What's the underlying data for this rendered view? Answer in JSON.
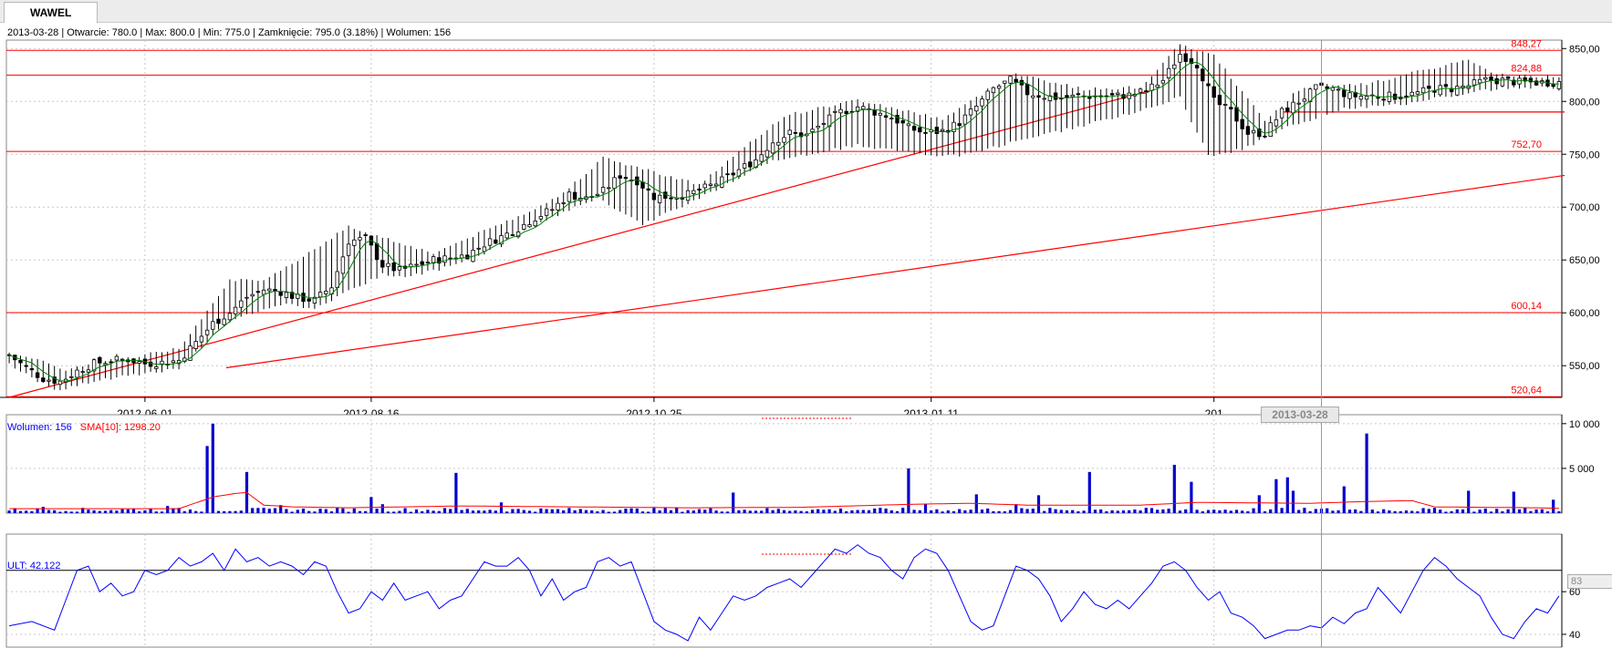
{
  "tab": {
    "label": "WAWEL"
  },
  "info": {
    "text": "2013-03-28 | Otwarcie: 780.0 | Max: 800.0 | Min: 775.0 | Zamknięcie: 795.0 (3.18%) | Wolumen: 156"
  },
  "volume_legend": {
    "vol_label": "Wolumen: 156",
    "sma_label": "SMA[10]: 1298.20"
  },
  "ult_legend": {
    "label": "ULT: 42.122"
  },
  "crosshair": {
    "date_label": "2013-03-28",
    "ult_value_label": "83"
  },
  "colors": {
    "support": "#ff0000",
    "sma_price": "#008000",
    "volume": "#0000cc",
    "sma_volume": "#ff0000",
    "ult": "#0000ff",
    "grid": "#c8c8c8"
  },
  "chart_data": [
    {
      "type": "candlestick",
      "title": "WAWEL",
      "ylim": [
        520,
        858
      ],
      "price_ticks": [
        "850,00",
        "800,00",
        "750,00",
        "700,00",
        "650,00",
        "600,00",
        "550,00"
      ],
      "date_labels": [
        "2012-06-01",
        "2012-08-16",
        "2012-10-25",
        "2013-01-11",
        "201"
      ],
      "horizontal_levels": [
        {
          "value": 848.27,
          "label": "848,27"
        },
        {
          "value": 824.88,
          "label": "824,88"
        },
        {
          "value": 752.7,
          "label": "752,70"
        },
        {
          "value": 600.14,
          "label": "600,14"
        },
        {
          "value": 520.64,
          "label": "520,64"
        }
      ],
      "trend_lines": [
        {
          "from": [
            "2012-05-01",
            520
          ],
          "to": [
            "2013-03-07",
            810
          ]
        },
        {
          "from": [
            "2012-06-29",
            548
          ],
          "to": [
            "2013-06-28",
            730
          ]
        },
        {
          "from": [
            "2013-04-12",
            790
          ],
          "to": [
            "2013-06-28",
            790
          ]
        }
      ],
      "closes": [
        [
          0,
          560
        ],
        [
          3,
          548
        ],
        [
          6,
          538
        ],
        [
          9,
          535
        ],
        [
          12,
          545
        ],
        [
          15,
          552
        ],
        [
          18,
          555
        ],
        [
          21,
          556
        ],
        [
          24,
          552
        ],
        [
          27,
          553
        ],
        [
          30,
          555
        ],
        [
          33,
          572
        ],
        [
          36,
          590
        ],
        [
          39,
          600
        ],
        [
          42,
          615
        ],
        [
          45,
          622
        ],
        [
          48,
          620
        ],
        [
          51,
          614
        ],
        [
          54,
          612
        ],
        [
          57,
          625
        ],
        [
          60,
          668
        ],
        [
          63,
          670
        ],
        [
          66,
          645
        ],
        [
          69,
          640
        ],
        [
          72,
          645
        ],
        [
          75,
          650
        ],
        [
          78,
          652
        ],
        [
          81,
          655
        ],
        [
          84,
          665
        ],
        [
          87,
          672
        ],
        [
          90,
          680
        ],
        [
          93,
          690
        ],
        [
          96,
          698
        ],
        [
          99,
          712
        ],
        [
          102,
          708
        ],
        [
          105,
          715
        ],
        [
          108,
          730
        ],
        [
          111,
          725
        ],
        [
          114,
          710
        ],
        [
          117,
          710
        ],
        [
          120,
          712
        ],
        [
          123,
          718
        ],
        [
          126,
          725
        ],
        [
          129,
          735
        ],
        [
          132,
          745
        ],
        [
          135,
          762
        ],
        [
          138,
          770
        ],
        [
          141,
          768
        ],
        [
          144,
          780
        ],
        [
          147,
          790
        ],
        [
          150,
          795
        ],
        [
          153,
          790
        ],
        [
          156,
          785
        ],
        [
          159,
          775
        ],
        [
          162,
          770
        ],
        [
          165,
          772
        ],
        [
          168,
          780
        ],
        [
          171,
          795
        ],
        [
          174,
          812
        ],
        [
          177,
          820
        ],
        [
          180,
          808
        ],
        [
          183,
          805
        ],
        [
          186,
          803
        ],
        [
          189,
          805
        ],
        [
          192,
          805
        ],
        [
          195,
          805
        ],
        [
          198,
          806
        ],
        [
          201,
          810
        ],
        [
          204,
          820
        ],
        [
          207,
          845
        ],
        [
          210,
          835
        ],
        [
          213,
          800
        ],
        [
          216,
          790
        ],
        [
          219,
          770
        ],
        [
          222,
          770
        ],
        [
          225,
          790
        ],
        [
          228,
          800
        ],
        [
          231,
          812
        ],
        [
          234,
          812
        ],
        [
          237,
          805
        ],
        [
          240,
          805
        ],
        [
          243,
          805
        ],
        [
          246,
          805
        ],
        [
          249,
          808
        ],
        [
          252,
          812
        ],
        [
          255,
          812
        ],
        [
          258,
          815
        ],
        [
          261,
          820
        ],
        [
          264,
          820
        ],
        [
          267,
          818
        ],
        [
          269,
          818
        ]
      ],
      "lows": [
        [
          0,
          553
        ],
        [
          8,
          528
        ],
        [
          20,
          542
        ],
        [
          30,
          548
        ],
        [
          39,
          595
        ],
        [
          48,
          610
        ],
        [
          54,
          605
        ],
        [
          66,
          638
        ],
        [
          70,
          635
        ],
        [
          80,
          648
        ],
        [
          93,
          685
        ],
        [
          104,
          710
        ],
        [
          112,
          685
        ],
        [
          119,
          702
        ],
        [
          135,
          745
        ],
        [
          150,
          760
        ],
        [
          160,
          752
        ],
        [
          168,
          750
        ],
        [
          183,
          770
        ],
        [
          195,
          785
        ],
        [
          207,
          805
        ],
        [
          212,
          750
        ],
        [
          218,
          756
        ],
        [
          225,
          775
        ],
        [
          236,
          795
        ],
        [
          246,
          798
        ],
        [
          260,
          812
        ],
        [
          269,
          815
        ]
      ],
      "highs": [
        [
          0,
          562
        ],
        [
          10,
          545
        ],
        [
          23,
          558
        ],
        [
          30,
          565
        ],
        [
          39,
          630
        ],
        [
          45,
          628
        ],
        [
          60,
          680
        ],
        [
          75,
          655
        ],
        [
          90,
          690
        ],
        [
          97,
          708
        ],
        [
          105,
          745
        ],
        [
          112,
          735
        ],
        [
          122,
          720
        ],
        [
          137,
          785
        ],
        [
          150,
          800
        ],
        [
          165,
          782
        ],
        [
          178,
          825
        ],
        [
          190,
          810
        ],
        [
          200,
          812
        ],
        [
          207,
          852
        ],
        [
          213,
          842
        ],
        [
          222,
          780
        ],
        [
          228,
          810
        ],
        [
          240,
          815
        ],
        [
          258,
          838
        ],
        [
          262,
          825
        ],
        [
          269,
          822
        ]
      ]
    },
    {
      "type": "bar",
      "series": [
        {
          "name": "Wolumen"
        },
        {
          "name": "SMA[10]"
        }
      ],
      "ylim": [
        0,
        11000
      ],
      "ticks": [
        "10 000",
        "5 000"
      ],
      "spikes": [
        [
          6,
          700
        ],
        [
          28,
          800
        ],
        [
          35,
          7500
        ],
        [
          36,
          10000
        ],
        [
          42,
          4600
        ],
        [
          48,
          900
        ],
        [
          64,
          1800
        ],
        [
          66,
          1000
        ],
        [
          79,
          4500
        ],
        [
          87,
          1200
        ],
        [
          128,
          2300
        ],
        [
          159,
          5000
        ],
        [
          162,
          1000
        ],
        [
          171,
          2100
        ],
        [
          178,
          1000
        ],
        [
          182,
          2000
        ],
        [
          191,
          4600
        ],
        [
          206,
          5400
        ],
        [
          209,
          3500
        ],
        [
          221,
          2000
        ],
        [
          224,
          3800
        ],
        [
          226,
          4000
        ],
        [
          227,
          2500
        ],
        [
          236,
          3000
        ],
        [
          240,
          8900
        ],
        [
          258,
          2500
        ],
        [
          266,
          2400
        ],
        [
          273,
          1500
        ]
      ],
      "sma_points": [
        [
          0,
          500
        ],
        [
          30,
          500
        ],
        [
          36,
          1800
        ],
        [
          40,
          2200
        ],
        [
          42,
          2300
        ],
        [
          45,
          900
        ],
        [
          50,
          700
        ],
        [
          60,
          600
        ],
        [
          80,
          800
        ],
        [
          100,
          700
        ],
        [
          120,
          600
        ],
        [
          140,
          650
        ],
        [
          160,
          1000
        ],
        [
          170,
          1100
        ],
        [
          180,
          900
        ],
        [
          200,
          900
        ],
        [
          210,
          1200
        ],
        [
          230,
          1100
        ],
        [
          240,
          1300
        ],
        [
          248,
          1400
        ],
        [
          252,
          700
        ],
        [
          270,
          600
        ],
        [
          276,
          500
        ]
      ]
    },
    {
      "type": "line",
      "series": [
        {
          "name": "ULT"
        }
      ],
      "ylim": [
        34,
        87
      ],
      "ticks": [
        "40",
        "60"
      ],
      "reference_level": 70,
      "points": [
        [
          0,
          44
        ],
        [
          4,
          46
        ],
        [
          8,
          42
        ],
        [
          10,
          56
        ],
        [
          12,
          70
        ],
        [
          14,
          72
        ],
        [
          16,
          60
        ],
        [
          18,
          64
        ],
        [
          20,
          58
        ],
        [
          22,
          60
        ],
        [
          24,
          70
        ],
        [
          26,
          68
        ],
        [
          28,
          70
        ],
        [
          30,
          76
        ],
        [
          32,
          72
        ],
        [
          34,
          74
        ],
        [
          36,
          78
        ],
        [
          38,
          70
        ],
        [
          40,
          80
        ],
        [
          42,
          74
        ],
        [
          44,
          76
        ],
        [
          46,
          72
        ],
        [
          48,
          74
        ],
        [
          50,
          72
        ],
        [
          52,
          68
        ],
        [
          54,
          74
        ],
        [
          56,
          72
        ],
        [
          58,
          60
        ],
        [
          60,
          50
        ],
        [
          62,
          52
        ],
        [
          64,
          60
        ],
        [
          66,
          56
        ],
        [
          68,
          64
        ],
        [
          70,
          56
        ],
        [
          72,
          58
        ],
        [
          74,
          60
        ],
        [
          76,
          52
        ],
        [
          78,
          56
        ],
        [
          80,
          58
        ],
        [
          82,
          66
        ],
        [
          84,
          74
        ],
        [
          86,
          72
        ],
        [
          88,
          72
        ],
        [
          90,
          76
        ],
        [
          92,
          70
        ],
        [
          94,
          58
        ],
        [
          96,
          66
        ],
        [
          98,
          56
        ],
        [
          100,
          60
        ],
        [
          102,
          62
        ],
        [
          104,
          74
        ],
        [
          106,
          76
        ],
        [
          108,
          72
        ],
        [
          110,
          74
        ],
        [
          112,
          60
        ],
        [
          114,
          46
        ],
        [
          116,
          42
        ],
        [
          118,
          40
        ],
        [
          120,
          37
        ],
        [
          122,
          48
        ],
        [
          124,
          42
        ],
        [
          126,
          50
        ],
        [
          128,
          58
        ],
        [
          130,
          56
        ],
        [
          132,
          58
        ],
        [
          134,
          62
        ],
        [
          136,
          64
        ],
        [
          138,
          66
        ],
        [
          140,
          62
        ],
        [
          142,
          68
        ],
        [
          144,
          74
        ],
        [
          146,
          80
        ],
        [
          148,
          78
        ],
        [
          150,
          82
        ],
        [
          152,
          78
        ],
        [
          154,
          76
        ],
        [
          156,
          70
        ],
        [
          158,
          66
        ],
        [
          160,
          76
        ],
        [
          162,
          80
        ],
        [
          164,
          78
        ],
        [
          166,
          70
        ],
        [
          168,
          58
        ],
        [
          170,
          46
        ],
        [
          172,
          42
        ],
        [
          174,
          44
        ],
        [
          176,
          58
        ],
        [
          178,
          72
        ],
        [
          180,
          70
        ],
        [
          182,
          66
        ],
        [
          184,
          58
        ],
        [
          186,
          46
        ],
        [
          188,
          52
        ],
        [
          190,
          60
        ],
        [
          192,
          54
        ],
        [
          194,
          52
        ],
        [
          196,
          56
        ],
        [
          198,
          52
        ],
        [
          200,
          58
        ],
        [
          202,
          64
        ],
        [
          204,
          72
        ],
        [
          206,
          74
        ],
        [
          208,
          70
        ],
        [
          210,
          62
        ],
        [
          212,
          56
        ],
        [
          214,
          60
        ],
        [
          216,
          50
        ],
        [
          218,
          48
        ],
        [
          220,
          44
        ],
        [
          222,
          38
        ],
        [
          224,
          40
        ],
        [
          226,
          42
        ],
        [
          228,
          42
        ],
        [
          230,
          44
        ],
        [
          232,
          43
        ],
        [
          234,
          48
        ],
        [
          236,
          45
        ],
        [
          238,
          50
        ],
        [
          240,
          52
        ],
        [
          242,
          62
        ],
        [
          244,
          56
        ],
        [
          246,
          50
        ],
        [
          248,
          60
        ],
        [
          250,
          70
        ],
        [
          252,
          76
        ],
        [
          254,
          72
        ],
        [
          256,
          66
        ],
        [
          258,
          62
        ],
        [
          260,
          58
        ],
        [
          262,
          48
        ],
        [
          264,
          40
        ],
        [
          266,
          38
        ],
        [
          268,
          46
        ],
        [
          270,
          52
        ],
        [
          272,
          50
        ],
        [
          274,
          58
        ]
      ]
    }
  ]
}
